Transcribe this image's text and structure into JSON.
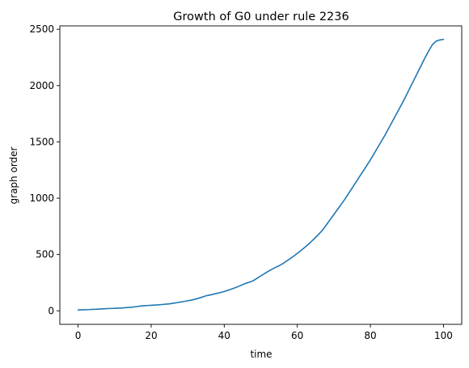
{
  "chart_data": {
    "type": "line",
    "title": "Growth of G0 under rule 2236",
    "xlabel": "time",
    "ylabel": "graph order",
    "xlim": [
      -5,
      105
    ],
    "ylim": [
      -120,
      2530
    ],
    "xticks": [
      0,
      20,
      40,
      60,
      80,
      100
    ],
    "yticks": [
      0,
      500,
      1000,
      1500,
      2000,
      2500
    ],
    "grid": false,
    "series": [
      {
        "color": "#1f77b4",
        "x": [
          0,
          1,
          2,
          3,
          4,
          5,
          6,
          7,
          8,
          9,
          10,
          11,
          12,
          13,
          14,
          15,
          16,
          17,
          18,
          19,
          20,
          21,
          22,
          23,
          24,
          25,
          26,
          27,
          28,
          29,
          30,
          31,
          32,
          33,
          34,
          35,
          36,
          37,
          38,
          39,
          40,
          41,
          42,
          43,
          44,
          45,
          46,
          47,
          48,
          49,
          50,
          51,
          52,
          53,
          54,
          55,
          56,
          57,
          58,
          59,
          60,
          61,
          62,
          63,
          64,
          65,
          66,
          67,
          68,
          69,
          70,
          71,
          72,
          73,
          74,
          75,
          76,
          77,
          78,
          79,
          80,
          81,
          82,
          83,
          84,
          85,
          86,
          87,
          88,
          89,
          90,
          91,
          92,
          93,
          94,
          95,
          96,
          97,
          98,
          99,
          100
        ],
        "y": [
          8,
          9,
          10,
          11,
          13,
          14,
          16,
          18,
          20,
          21,
          22,
          24,
          25,
          28,
          30,
          33,
          37,
          42,
          45,
          47,
          49,
          51,
          53,
          56,
          59,
          62,
          67,
          72,
          78,
          83,
          89,
          95,
          103,
          112,
          122,
          133,
          140,
          147,
          155,
          163,
          172,
          182,
          193,
          205,
          218,
          232,
          245,
          255,
          268,
          290,
          310,
          330,
          350,
          368,
          385,
          400,
          418,
          440,
          462,
          485,
          510,
          535,
          562,
          590,
          620,
          652,
          685,
          720,
          765,
          810,
          855,
          900,
          945,
          990,
          1040,
          1090,
          1140,
          1190,
          1240,
          1290,
          1340,
          1395,
          1450,
          1505,
          1560,
          1620,
          1680,
          1740,
          1800,
          1860,
          1925,
          1990,
          2055,
          2120,
          2185,
          2250,
          2310,
          2365,
          2395,
          2405,
          2410
        ]
      }
    ]
  }
}
